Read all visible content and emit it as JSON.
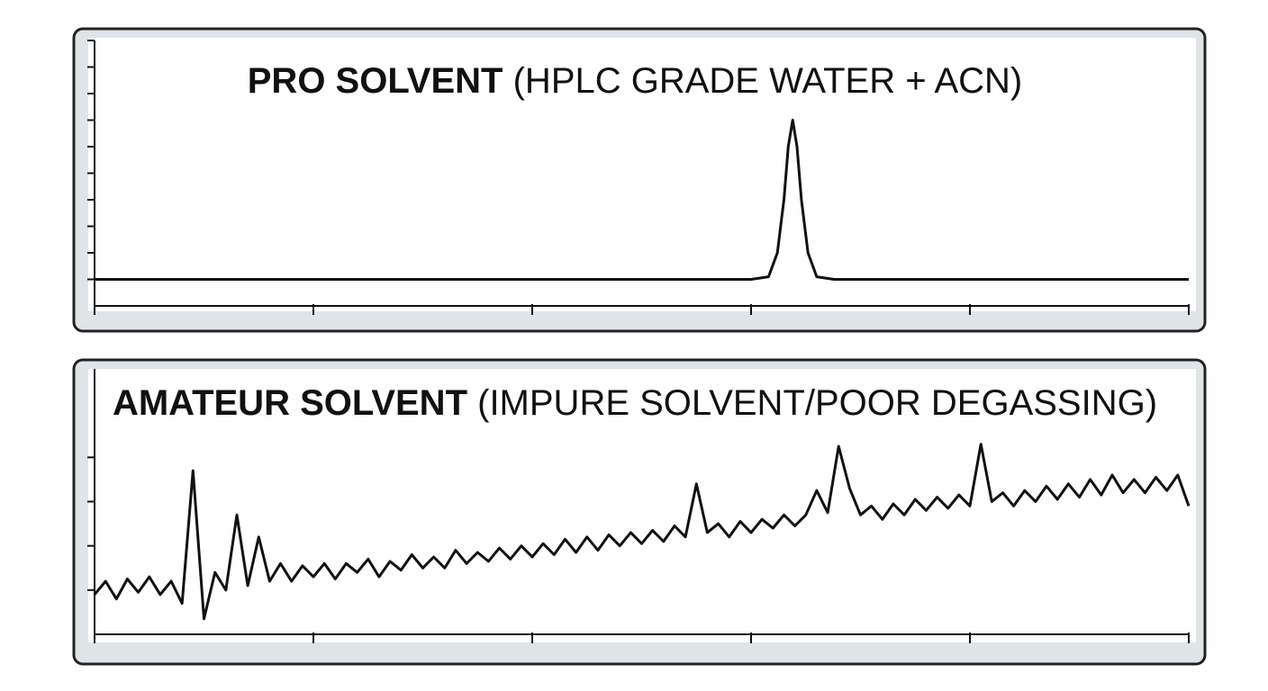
{
  "chart_data": [
    {
      "type": "line",
      "title": "PRO SOLVENT",
      "subtitle": "(HPLC GRADE WATER + ACN)",
      "color": "#111111",
      "x": [
        0,
        3.0,
        3.08,
        3.12,
        3.15,
        3.17,
        3.19,
        3.21,
        3.23,
        3.26,
        3.3,
        3.38,
        5
      ],
      "values": [
        1,
        1,
        1.1,
        2,
        4,
        6,
        7,
        6,
        4,
        2,
        1.1,
        1,
        1
      ],
      "xlim": [
        0,
        5
      ],
      "xticks": [
        0,
        1,
        2,
        3,
        4,
        5
      ],
      "ylim": [
        0,
        10
      ],
      "yticks": [
        1,
        2,
        3,
        4,
        5,
        6,
        7,
        8,
        9,
        10
      ]
    },
    {
      "type": "line",
      "title": "AMATEUR SOLVENT",
      "subtitle": "(IMPURE SOLVENT/POOR DEGASSING)",
      "color": "#111111",
      "x": [
        0,
        0.05,
        0.1,
        0.15,
        0.2,
        0.25,
        0.3,
        0.35,
        0.4,
        0.45,
        0.5,
        0.55,
        0.6,
        0.65,
        0.7,
        0.75,
        0.8,
        0.85,
        0.9,
        0.95,
        1.0,
        1.05,
        1.1,
        1.15,
        1.2,
        1.25,
        1.3,
        1.35,
        1.4,
        1.45,
        1.5,
        1.55,
        1.6,
        1.65,
        1.7,
        1.75,
        1.8,
        1.85,
        1.9,
        1.95,
        2.0,
        2.05,
        2.1,
        2.15,
        2.2,
        2.25,
        2.3,
        2.35,
        2.4,
        2.45,
        2.5,
        2.55,
        2.6,
        2.65,
        2.7,
        2.75,
        2.8,
        2.85,
        2.9,
        2.95,
        3.0,
        3.05,
        3.1,
        3.15,
        3.2,
        3.25,
        3.3,
        3.35,
        3.4,
        3.45,
        3.5,
        3.55,
        3.6,
        3.65,
        3.7,
        3.75,
        3.8,
        3.85,
        3.9,
        3.95,
        4.0,
        4.05,
        4.1,
        4.15,
        4.2,
        4.25,
        4.3,
        4.35,
        4.4,
        4.45,
        4.5,
        4.55,
        4.6,
        4.65,
        4.7,
        4.75,
        4.8,
        4.85,
        4.9,
        4.95,
        5.0
      ],
      "values": [
        0.9,
        1.2,
        0.8,
        1.25,
        0.95,
        1.3,
        0.9,
        1.2,
        0.7,
        3.7,
        0.35,
        1.4,
        1.0,
        2.7,
        1.1,
        2.2,
        1.2,
        1.6,
        1.2,
        1.55,
        1.3,
        1.6,
        1.25,
        1.6,
        1.4,
        1.7,
        1.3,
        1.65,
        1.45,
        1.8,
        1.5,
        1.75,
        1.5,
        1.9,
        1.6,
        1.85,
        1.65,
        1.95,
        1.7,
        2.0,
        1.75,
        2.05,
        1.8,
        2.15,
        1.85,
        2.2,
        1.9,
        2.25,
        2.0,
        2.3,
        2.05,
        2.35,
        2.1,
        2.45,
        2.2,
        3.4,
        2.3,
        2.5,
        2.2,
        2.55,
        2.3,
        2.6,
        2.4,
        2.7,
        2.45,
        2.7,
        3.25,
        2.75,
        4.25,
        3.3,
        2.7,
        2.9,
        2.6,
        2.95,
        2.7,
        3.05,
        2.8,
        3.1,
        2.85,
        3.15,
        2.9,
        4.3,
        3.0,
        3.2,
        2.9,
        3.25,
        3.0,
        3.35,
        3.05,
        3.4,
        3.1,
        3.5,
        3.15,
        3.6,
        3.2,
        3.5,
        3.2,
        3.55,
        3.25,
        3.6,
        2.9
      ],
      "xlim": [
        0,
        5
      ],
      "xticks": [
        0,
        1,
        2,
        3,
        4,
        5
      ],
      "ylim": [
        0,
        6
      ],
      "yticks": [
        1,
        2,
        3,
        4
      ]
    }
  ]
}
